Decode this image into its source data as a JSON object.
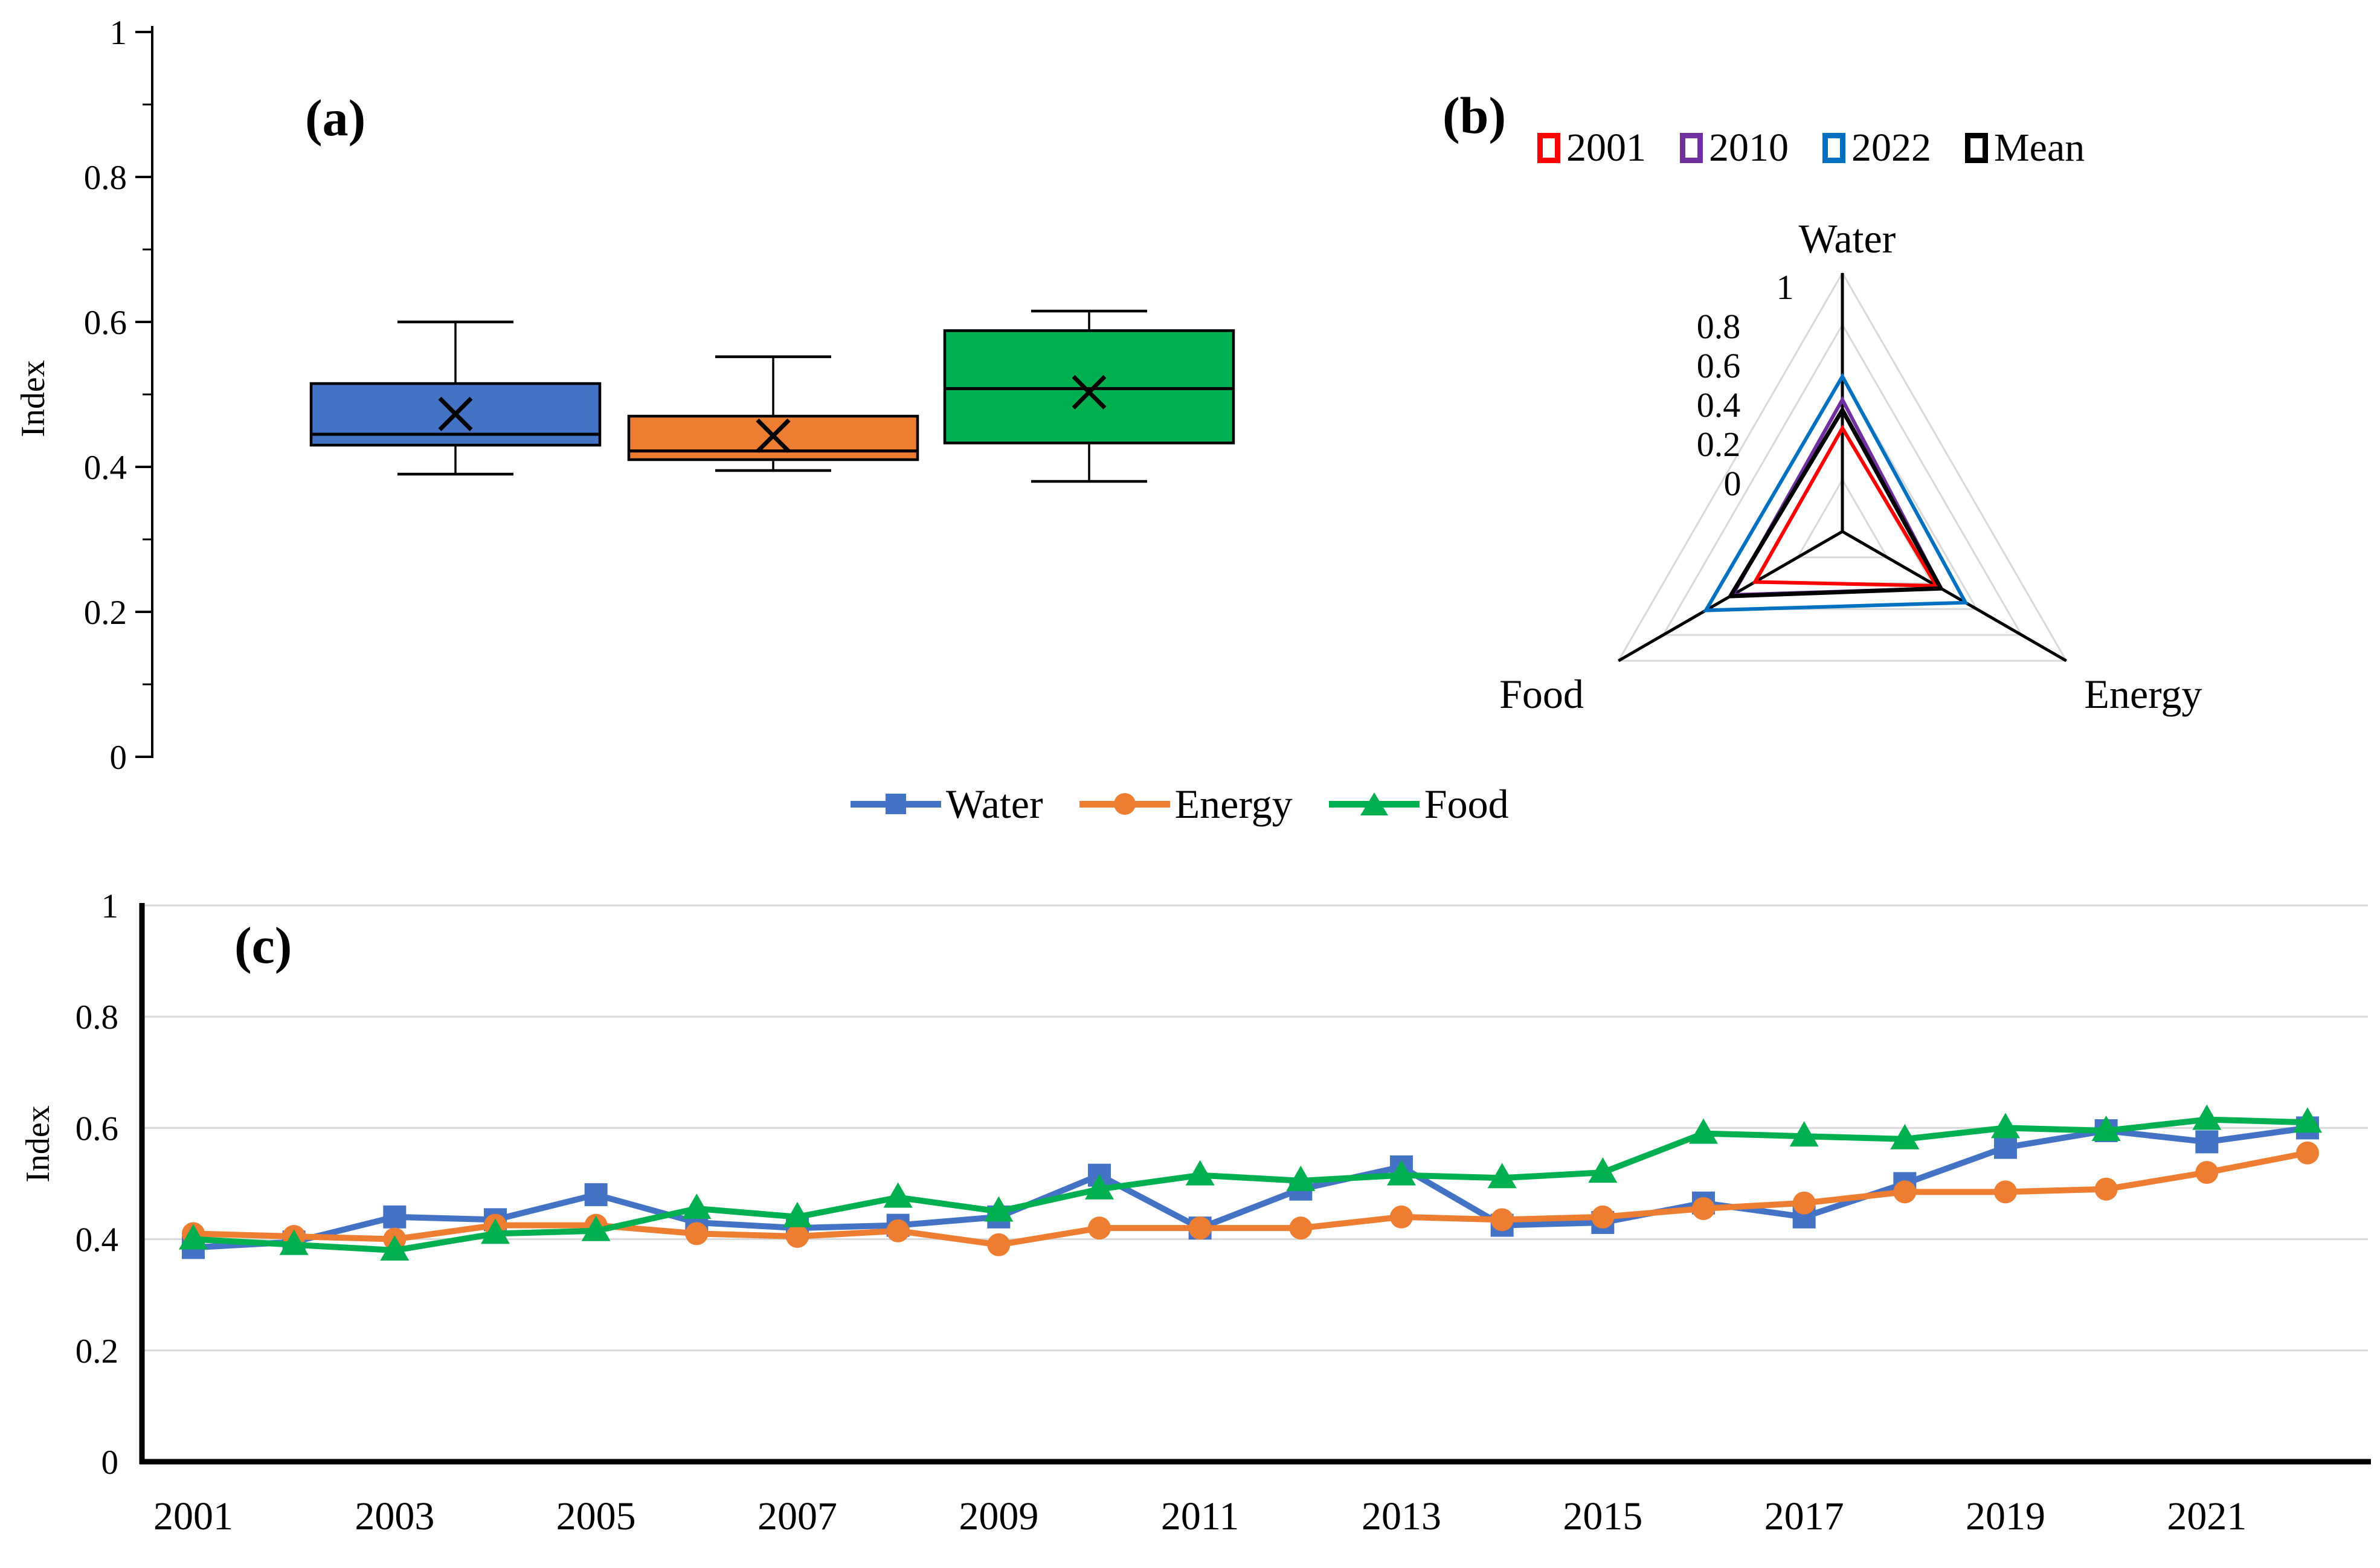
{
  "figure": {
    "background": "#ffffff",
    "grid_color": "#D9D9D9",
    "axis_color": "#000000",
    "panel_labels": [
      "(a)",
      "(b)",
      "(c)"
    ]
  },
  "chart_data": [
    {
      "id": "a",
      "type": "box",
      "title": "(a)",
      "ylabel": "Index",
      "ylim": [
        0,
        1
      ],
      "yticks": [
        0,
        0.2,
        0.4,
        0.6,
        0.8,
        1
      ],
      "ytick_labels": [
        "0",
        "0.2",
        "0.4",
        "0.6",
        "0.8",
        "1"
      ],
      "minor_yticks": [
        0.1,
        0.3,
        0.5,
        0.7,
        0.9
      ],
      "grid": false,
      "categories": [
        "Water",
        "Energy",
        "Food"
      ],
      "boxes": [
        {
          "name": "Water",
          "color": "#4472C4",
          "whisker_low": 0.39,
          "q1": 0.43,
          "median": 0.445,
          "q3": 0.515,
          "whisker_high": 0.6,
          "mean": 0.473
        },
        {
          "name": "Energy",
          "color": "#ED7D31",
          "whisker_low": 0.395,
          "q1": 0.41,
          "median": 0.422,
          "q3": 0.47,
          "whisker_high": 0.552,
          "mean": 0.443
        },
        {
          "name": "Food",
          "color": "#00B050",
          "whisker_low": 0.38,
          "q1": 0.433,
          "median": 0.508,
          "q3": 0.588,
          "whisker_high": 0.615,
          "mean": 0.503
        }
      ]
    },
    {
      "id": "b",
      "type": "radar",
      "title": "(b)",
      "axes": [
        "Water",
        "Energy",
        "Food"
      ],
      "rlim": [
        0,
        1
      ],
      "rticks": [
        0,
        0.2,
        0.4,
        0.6,
        0.8,
        1
      ],
      "rtick_labels": [
        "0",
        "0.2",
        "0.4",
        "0.6",
        "0.8",
        "1"
      ],
      "legend_position": "top",
      "series": [
        {
          "name": "2001",
          "color": "#FF0000",
          "values": [
            0.4,
            0.42,
            0.39
          ]
        },
        {
          "name": "2010",
          "color": "#7030A0",
          "values": [
            0.51,
            0.44,
            0.49
          ]
        },
        {
          "name": "2022",
          "color": "#0070C0",
          "values": [
            0.6,
            0.55,
            0.61
          ]
        },
        {
          "name": "Mean",
          "color": "#000000",
          "values": [
            0.47,
            0.44,
            0.5
          ]
        }
      ]
    },
    {
      "id": "c",
      "type": "line",
      "title": "(c)",
      "ylabel": "Index",
      "ylim": [
        0,
        1
      ],
      "yticks": [
        0,
        0.2,
        0.4,
        0.6,
        0.8,
        1
      ],
      "ytick_labels": [
        "0",
        "0.2",
        "0.4",
        "0.6",
        "0.8",
        "1"
      ],
      "grid": true,
      "legend_position": "top",
      "x": [
        2001,
        2002,
        2003,
        2004,
        2005,
        2006,
        2007,
        2008,
        2009,
        2010,
        2011,
        2012,
        2013,
        2014,
        2015,
        2016,
        2017,
        2018,
        2019,
        2020,
        2021,
        2022
      ],
      "xtick_labels": [
        "2001",
        "2003",
        "2005",
        "2007",
        "2009",
        "2011",
        "2013",
        "2015",
        "2017",
        "2019",
        "2021"
      ],
      "series": [
        {
          "name": "Water",
          "color": "#4472C4",
          "marker": "square",
          "values": [
            0.385,
            0.395,
            0.44,
            0.435,
            0.48,
            0.43,
            0.42,
            0.425,
            0.44,
            0.515,
            0.42,
            0.49,
            0.53,
            0.425,
            0.43,
            0.465,
            0.44,
            0.5,
            0.565,
            0.595,
            0.575,
            0.6
          ]
        },
        {
          "name": "Energy",
          "color": "#ED7D31",
          "marker": "circle",
          "values": [
            0.41,
            0.405,
            0.4,
            0.425,
            0.425,
            0.41,
            0.405,
            0.415,
            0.39,
            0.42,
            0.42,
            0.42,
            0.44,
            0.435,
            0.44,
            0.455,
            0.465,
            0.485,
            0.485,
            0.49,
            0.52,
            0.555
          ]
        },
        {
          "name": "Food",
          "color": "#00B050",
          "marker": "triangle",
          "values": [
            0.4,
            0.39,
            0.38,
            0.41,
            0.415,
            0.455,
            0.44,
            0.475,
            0.45,
            0.49,
            0.515,
            0.505,
            0.515,
            0.51,
            0.52,
            0.59,
            0.585,
            0.58,
            0.6,
            0.595,
            0.615,
            0.61
          ]
        }
      ]
    }
  ]
}
